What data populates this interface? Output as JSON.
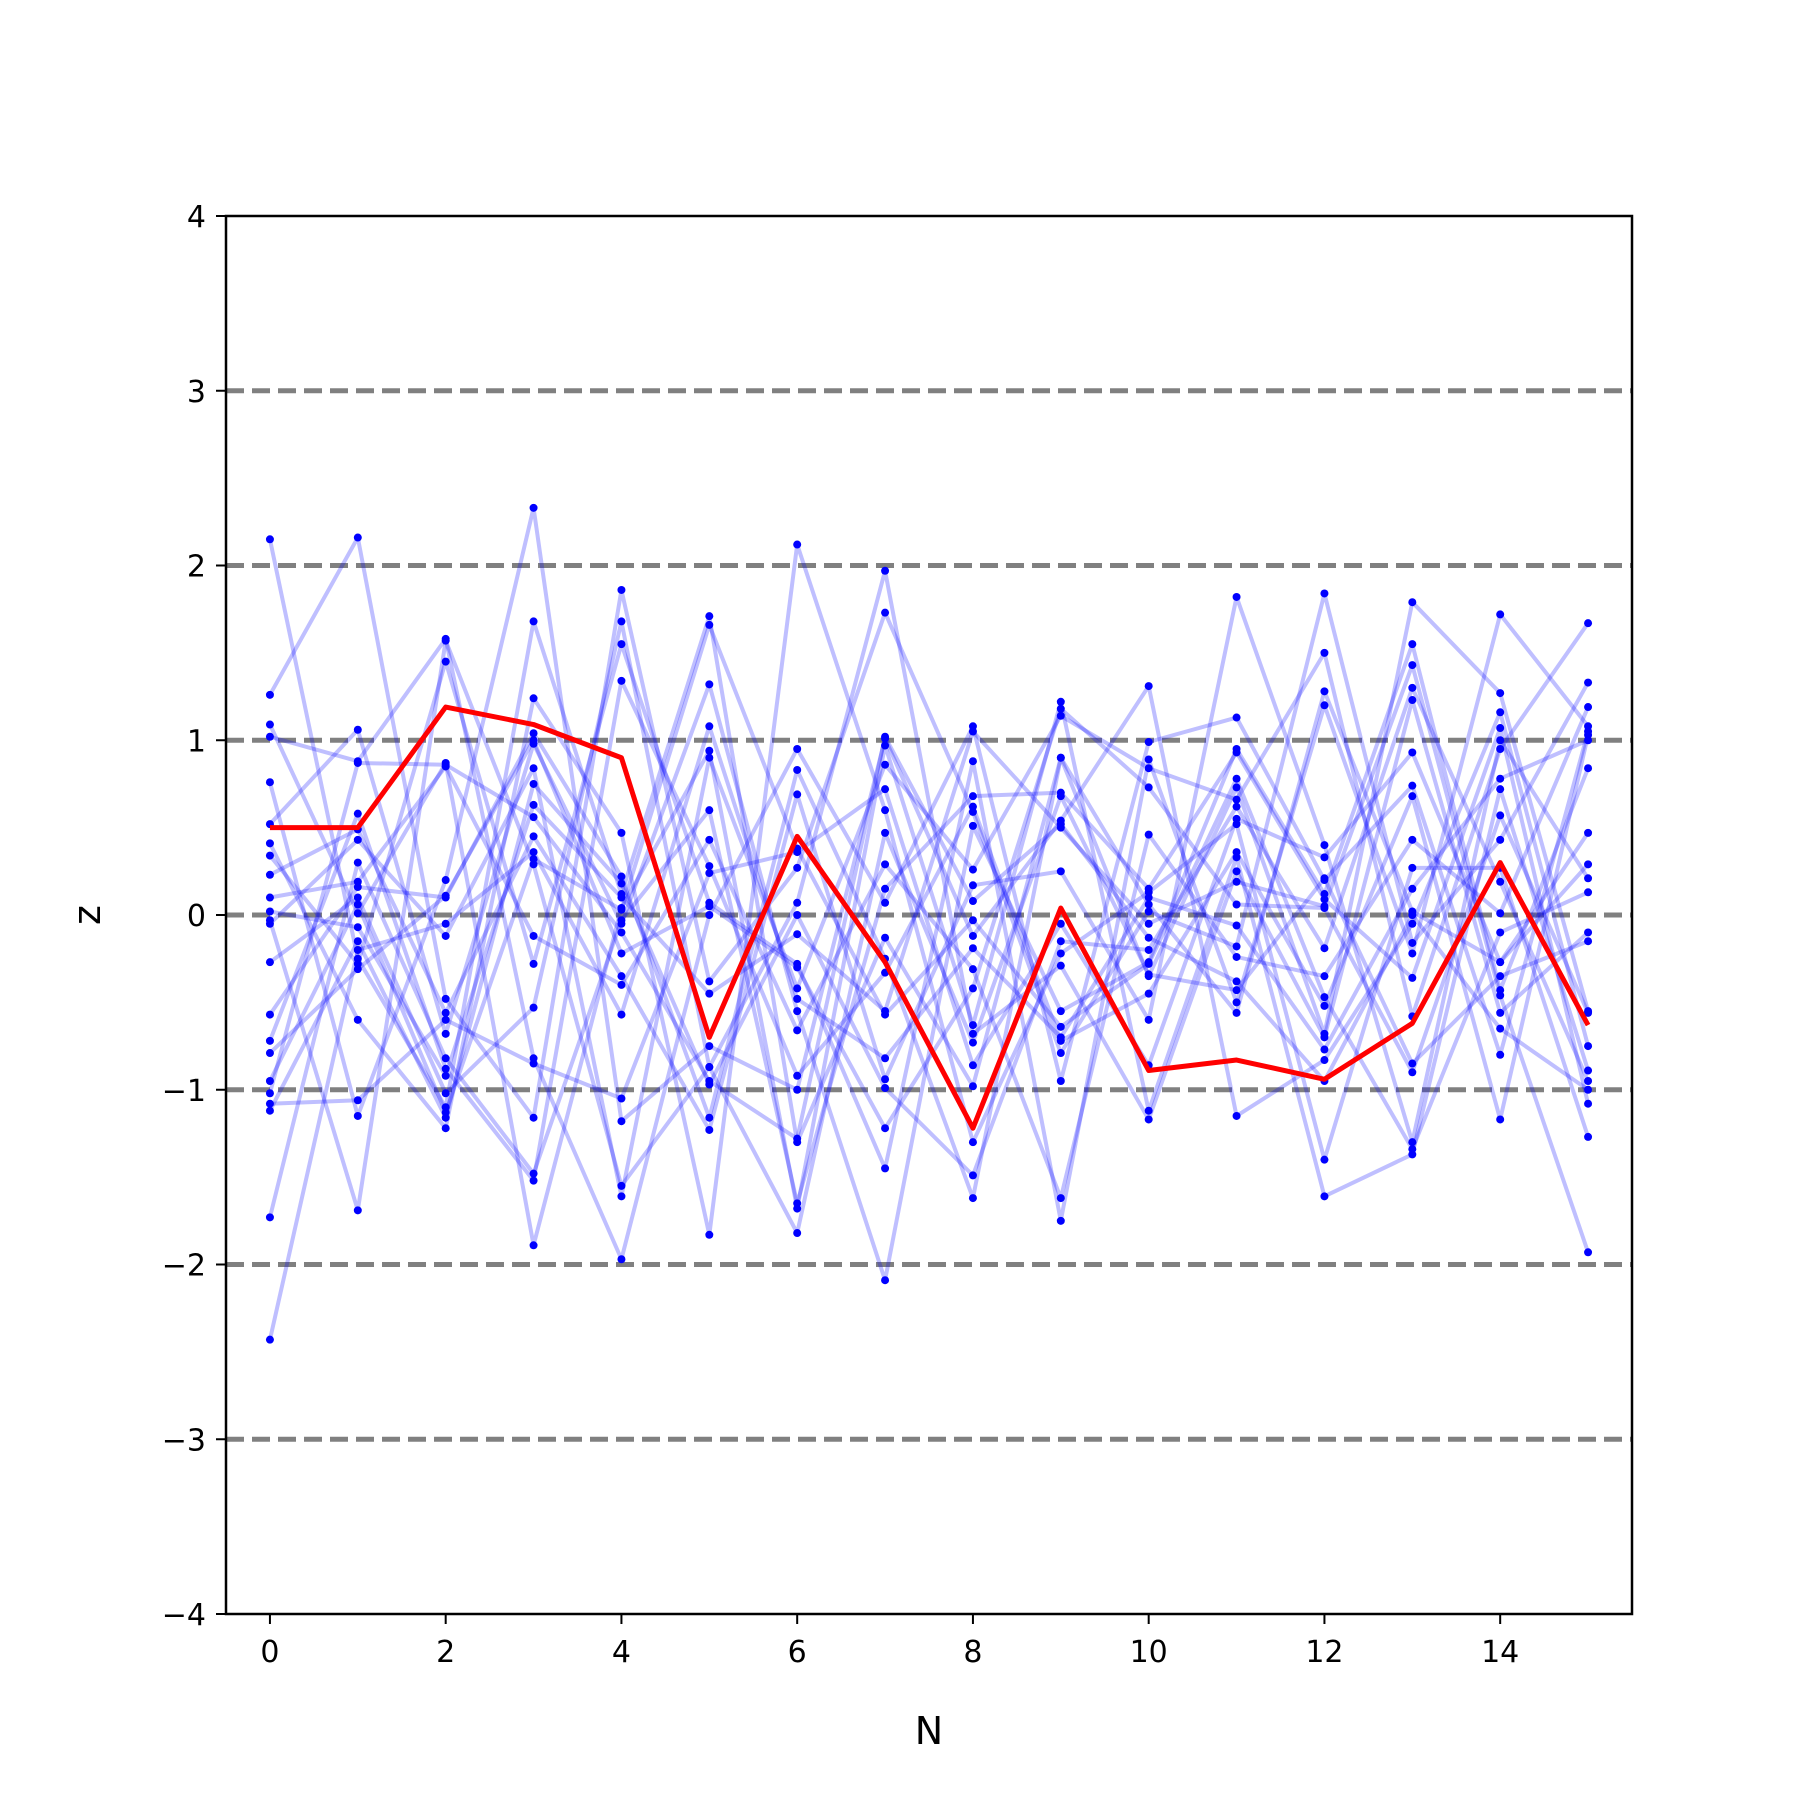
{
  "chart_data": {
    "type": "line",
    "title": "",
    "xlabel": "N",
    "ylabel": "z",
    "xlim": [
      -0.5,
      15.5
    ],
    "ylim": [
      -4,
      4
    ],
    "x_ticks": [
      0,
      2,
      4,
      6,
      8,
      10,
      12,
      14
    ],
    "y_ticks": [
      -4,
      -3,
      -2,
      -1,
      0,
      1,
      2,
      3,
      4
    ],
    "y_tick_labels": [
      "−4",
      "−3",
      "−2",
      "−1",
      "0",
      "1",
      "2",
      "3",
      "4"
    ],
    "reference_lines": [
      -3,
      -2,
      -1,
      0,
      1,
      2,
      3
    ],
    "grid": false,
    "legend": "none",
    "colors": {
      "sample_series": "#0000ff",
      "highlight_series": "#ff0000",
      "reference_line": "#808080",
      "axes": "#000000"
    },
    "x": [
      0,
      1,
      2,
      3,
      4,
      5,
      6,
      7,
      8,
      9,
      10,
      11,
      12,
      13,
      14,
      15
    ],
    "highlight_series": {
      "values": [
        0.5,
        0.5,
        1.19,
        1.09,
        0.9,
        -0.7,
        0.45,
        -0.27,
        -1.22,
        0.04,
        -0.89,
        -0.83,
        -0.94,
        -0.62,
        0.3,
        -0.63
      ]
    },
    "sample_series": [
      {
        "values": [
          2.15,
          -0.25,
          -1.1,
          1.68,
          0.12,
          1.71,
          -1.3,
          -0.13,
          -0.98,
          0.9,
          -0.35,
          0.73,
          -0.68,
          1.79,
          1.27,
          -0.55
        ]
      },
      {
        "values": [
          1.26,
          2.16,
          -0.48,
          -1.16,
          1.86,
          -0.38,
          0.27,
          1.73,
          0.59,
          -0.79,
          0.02,
          -0.18,
          1.84,
          -0.16,
          0.43,
          1.33
        ]
      },
      {
        "values": [
          1.09,
          0.01,
          0.87,
          -1.89,
          0.04,
          0.94,
          -1.68,
          0.97,
          -0.63,
          1.22,
          -1.12,
          0.33,
          -1.61,
          -1.37,
          0.72,
          -0.89
        ]
      },
      {
        "values": [
          1.02,
          0.88,
          1.58,
          -0.82,
          -1.97,
          0.0,
          0.95,
          0.07,
          1.08,
          -0.95,
          0.99,
          1.13,
          0.2,
          0.74,
          -0.8,
          1.05
        ]
      },
      {
        "values": [
          0.76,
          -1.15,
          0.2,
          2.33,
          -1.18,
          -0.75,
          -1.0,
          1.01,
          -0.12,
          0.54,
          1.31,
          -1.15,
          -0.83,
          -0.05,
          1.16,
          -0.75
        ]
      },
      {
        "values": [
          0.52,
          1.06,
          -0.68,
          0.98,
          -0.05,
          1.32,
          -0.55,
          -2.09,
          0.51,
          -0.55,
          -0.27,
          0.95,
          0.12,
          1.55,
          -0.43,
          0.84
        ]
      },
      {
        "values": [
          0.41,
          -0.6,
          -1.22,
          1.24,
          0.47,
          -1.83,
          2.12,
          0.6,
          -1.3,
          -0.22,
          0.13,
          0.52,
          -1.4,
          0.27,
          0.27,
          -1.27
        ]
      },
      {
        "values": [
          0.34,
          -0.28,
          1.45,
          -0.28,
          1.55,
          0.07,
          -0.28,
          -1.45,
          0.88,
          -1.75,
          0.89,
          -0.5,
          1.2,
          -0.22,
          1.72,
          1.08
        ]
      },
      {
        "values": [
          0.23,
          0.49,
          -0.56,
          0.45,
          -0.35,
          -1.23,
          0.69,
          -0.94,
          0.17,
          0.25,
          -0.6,
          1.82,
          0.4,
          -1.3,
          1.0,
          0.21
        ]
      },
      {
        "values": [
          0.1,
          0.19,
          0.85,
          -0.12,
          -0.4,
          0.43,
          -0.66,
          0.29,
          -0.31,
          -1.62,
          0.46,
          -0.24,
          -0.35,
          0.43,
          0.01,
          1.19
        ]
      },
      {
        "values": [
          0.02,
          -0.07,
          -0.92,
          0.63,
          0.1,
          -0.45,
          -0.11,
          -0.55,
          1.05,
          0.5,
          -0.05,
          0.19,
          0.05,
          1.43,
          -0.46,
          -1.93
        ]
      },
      {
        "values": [
          -0.03,
          -1.69,
          1.57,
          0.29,
          -1.55,
          -0.87,
          -1.82,
          0.47,
          -0.73,
          0.68,
          -0.34,
          -0.43,
          0.21,
          -0.85,
          -0.35,
          -0.15
        ]
      },
      {
        "values": [
          -0.05,
          0.43,
          -0.12,
          0.84,
          -1.61,
          0.9,
          -0.42,
          0.86,
          0.26,
          1.14,
          0.84,
          0.66,
          1.5,
          -0.58,
          0.95,
          1.67
        ]
      },
      {
        "values": [
          -0.27,
          0.1,
          -1.02,
          -0.53,
          1.68,
          -0.87,
          0.07,
          1.97,
          -0.68,
          -0.29,
          -1.17,
          0.25,
          -0.7,
          1.23,
          -0.56,
          -0.1
        ]
      },
      {
        "values": [
          -0.57,
          0.16,
          0.1,
          1.04,
          0.22,
          -1.16,
          0.83,
          -0.25,
          -1.62,
          0.9,
          0.06,
          -0.56,
          1.28,
          0.02,
          -0.27,
          0.47
        ]
      },
      {
        "values": [
          -0.72,
          0.58,
          -0.88,
          -1.52,
          1.34,
          0.28,
          -0.92,
          -0.33,
          0.62,
          -0.72,
          -0.45,
          0.36,
          -0.52,
          0.68,
          -1.17,
          1.03
        ]
      },
      {
        "values": [
          -0.79,
          -0.31,
          0.11,
          1.0,
          -0.22,
          0.05,
          -0.3,
          -1.22,
          -0.42,
          1.18,
          0.73,
          0.06,
          0.04,
          -0.9,
          0.57,
          -0.56
        ]
      },
      {
        "values": [
          -0.95,
          0.06,
          -1.13,
          0.32,
          0.03,
          1.66,
          0.38,
          -0.57,
          -0.03,
          -0.64,
          -0.28,
          0.78,
          -0.47,
          -1.34,
          -0.1,
          0.13
        ]
      },
      {
        "values": [
          -1.02,
          0.87,
          0.86,
          0.56,
          -0.1,
          -0.95,
          -1.28,
          1.02,
          0.08,
          0.52,
          -0.13,
          -0.38,
          -0.95,
          0.0,
          -0.65,
          -1.0
        ]
      },
      {
        "values": [
          -1.08,
          -1.06,
          -0.6,
          -0.85,
          -1.05,
          0.24,
          0.36,
          0.72,
          -0.86,
          -0.05,
          -0.86,
          0.55,
          0.33,
          0.93,
          -0.27,
          0.29
        ]
      },
      {
        "values": [
          -1.12,
          -0.15,
          -1.16,
          0.75,
          0.18,
          -0.97,
          0.0,
          -0.99,
          -1.49,
          -0.15,
          -0.2,
          0.62,
          -0.19,
          1.3,
          0.19,
          -0.95
        ]
      },
      {
        "values": [
          -1.73,
          0.3,
          -0.82,
          -1.48,
          -0.03,
          0.6,
          -1.65,
          0.15,
          0.68,
          0.7,
          0.15,
          0.93,
          0.09,
          -0.36,
          1.07,
          -1.08
        ]
      },
      {
        "values": [
          -2.43,
          -0.2,
          -0.05,
          0.36,
          -0.57,
          1.08,
          -0.48,
          -0.82,
          -0.19,
          -0.7,
          0.1,
          -0.06,
          -0.77,
          0.15,
          0.78,
          1.0
        ]
      }
    ]
  }
}
